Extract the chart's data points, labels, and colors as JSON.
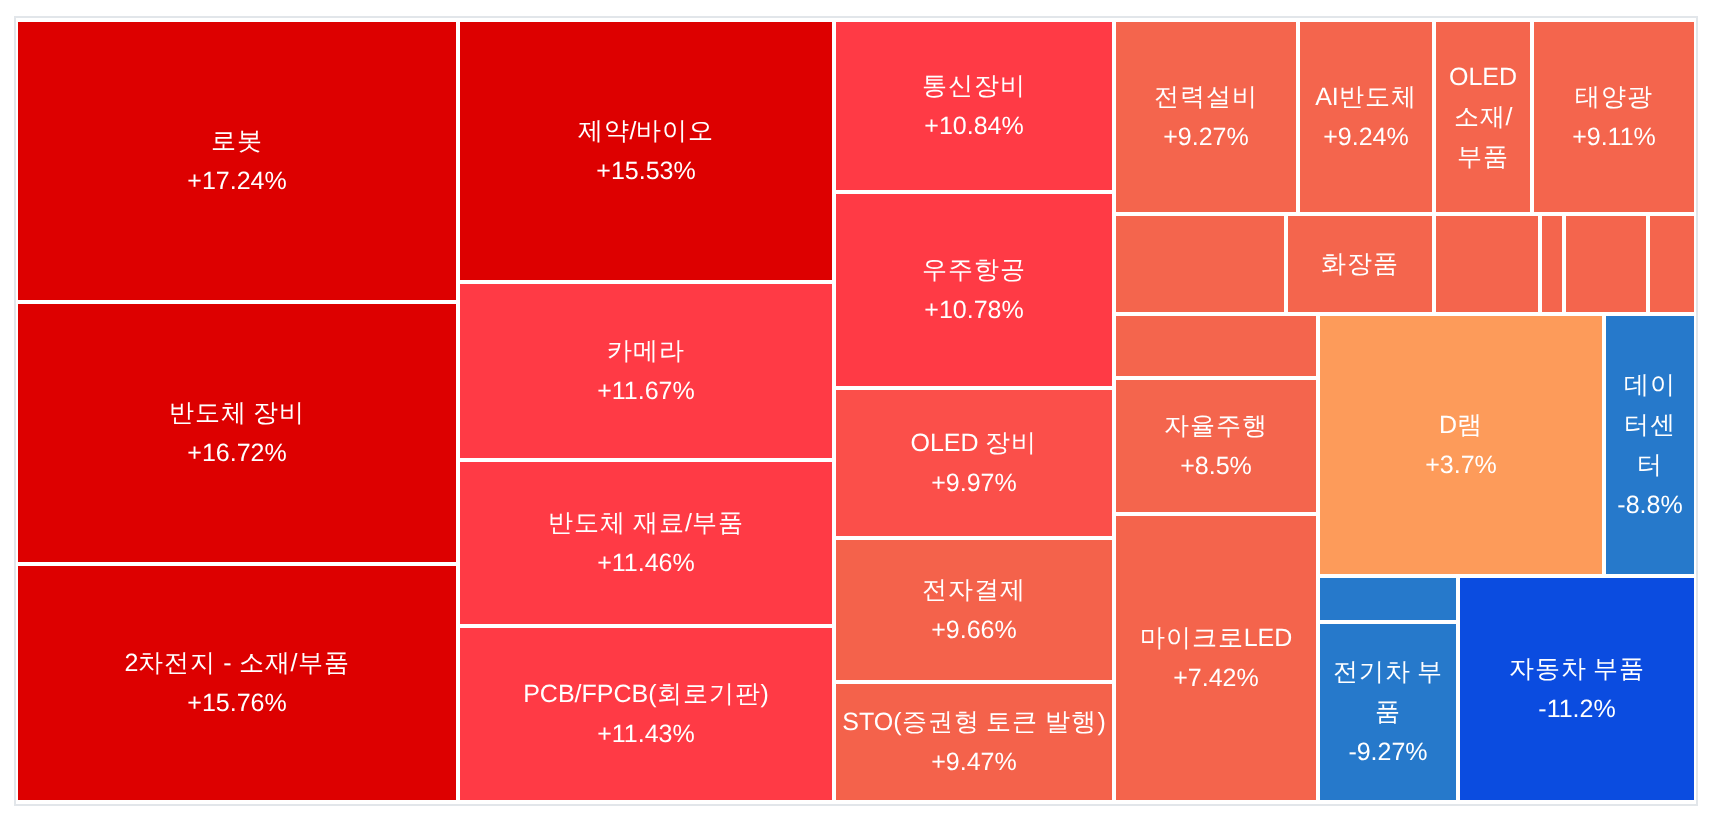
{
  "chart_data": {
    "type": "other",
    "categories": [
      "로봇",
      "반도체 장비",
      "2차전지 - 소재/부품",
      "제약/바이오",
      "카메라",
      "반도체 재료/부품",
      "PCB/FPCB(회로기판)",
      "통신장비",
      "우주항공",
      "OLED 장비",
      "전자결제",
      "STO(증권형 토큰 발행)",
      "전력설비",
      "AI반도체",
      "OLED 소재/부품",
      "태양광",
      null,
      "화장품",
      null,
      null,
      null,
      null,
      null,
      "자율주행",
      "마이크로LED",
      "D램",
      "데이터센터",
      null,
      "전기차 부품",
      "자동차 부품"
    ],
    "values": [
      17.24,
      16.72,
      15.76,
      15.53,
      11.67,
      11.46,
      11.43,
      10.84,
      10.78,
      9.97,
      9.66,
      9.47,
      9.27,
      9.24,
      null,
      9.11,
      null,
      null,
      null,
      null,
      null,
      null,
      null,
      8.5,
      7.42,
      3.7,
      -8.8,
      null,
      -9.27,
      -11.2
    ],
    "value_labels": [
      "+17.24%",
      "+16.72%",
      "+15.76%",
      "+15.53%",
      "+11.67%",
      "+11.46%",
      "+11.43%",
      "+10.84%",
      "+10.78%",
      "+9.97%",
      "+9.66%",
      "+9.47%",
      "+9.27%",
      "+9.24%",
      null,
      "+9.11%",
      null,
      null,
      null,
      null,
      null,
      null,
      null,
      "+8.5%",
      "+7.42%",
      "+3.7%",
      "-8.8%",
      null,
      "-9.27%",
      "-11.2%"
    ],
    "colors": [
      "#dd0000",
      "#dd0000",
      "#dd0000",
      "#dd0000",
      "#ff3a45",
      "#ff3a45",
      "#ff3a45",
      "#ff3a45",
      "#ff3a45",
      "#fb4f4a",
      "#f4624b",
      "#f4624b",
      "#f4654d",
      "#f4654d",
      "#f4654d",
      "#f4654d",
      "#f4654d",
      "#f4654d",
      "#f4654d",
      "#f4654d",
      "#f4654d",
      "#f4654d",
      "#f4654d",
      "#f4654d",
      "#f4644c",
      "#fd9b5a",
      "#2679cb",
      "#2679cb",
      "#2679cb",
      "#0b4ce0"
    ]
  }
}
